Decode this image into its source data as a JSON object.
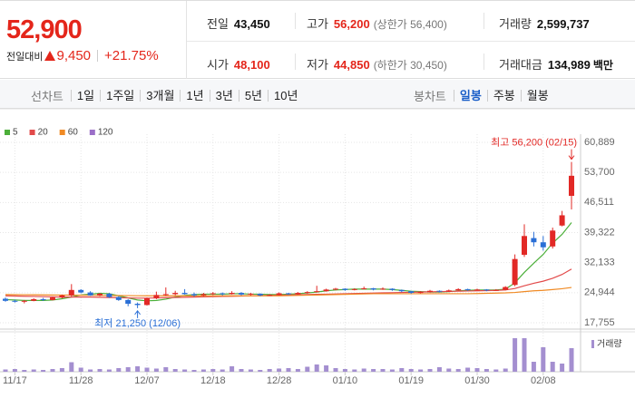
{
  "header": {
    "price": "52,900",
    "change_label": "전일대비",
    "change": "9,450",
    "change_rate": "+21.75%",
    "stats": [
      [
        {
          "label": "전일",
          "value": "43,450"
        },
        {
          "label": "고가",
          "value": "56,200",
          "note": "(상한가 56,400)"
        },
        {
          "label": "거래량",
          "value": "2,599,737"
        }
      ],
      [
        {
          "label": "시가",
          "value": "48,100"
        },
        {
          "label": "저가",
          "value": "44,850",
          "note": "(하한가 30,450)"
        },
        {
          "label": "거래대금",
          "value": "134,989",
          "unit": "백만"
        }
      ]
    ]
  },
  "tabs": {
    "line_label": "선차트",
    "line_periods": [
      "1일",
      "1주일",
      "3개월",
      "1년",
      "3년",
      "5년",
      "10년"
    ],
    "candle_label": "봉차트",
    "candle_periods": [
      "일봉",
      "주봉",
      "월봉"
    ],
    "selected": "일봉"
  },
  "chart_data": {
    "type": "candlestick",
    "categories": [
      null,
      "11/17",
      null,
      null,
      null,
      null,
      null,
      null,
      "11/28",
      null,
      null,
      null,
      null,
      null,
      null,
      "12/07",
      null,
      null,
      null,
      null,
      null,
      null,
      "12/18",
      null,
      null,
      null,
      null,
      null,
      null,
      "12/28",
      null,
      null,
      null,
      null,
      null,
      null,
      "01/10",
      null,
      null,
      null,
      null,
      null,
      null,
      "01/19",
      null,
      null,
      null,
      null,
      null,
      null,
      "01/30",
      null,
      null,
      null,
      null,
      null,
      null,
      "02/08",
      null,
      null,
      null
    ],
    "open": [
      23500,
      23000,
      22800,
      23000,
      23400,
      23200,
      23800,
      24300,
      25600,
      25000,
      24300,
      24700,
      23900,
      23200,
      22300,
      22000,
      23600,
      24400,
      24600,
      24900,
      24600,
      24300,
      24600,
      24800,
      24600,
      24900,
      24500,
      24700,
      24300,
      24400,
      24800,
      24600,
      24900,
      25100,
      25300,
      25700,
      25900,
      25600,
      25800,
      26000,
      25700,
      25900,
      25600,
      25300,
      24900,
      25100,
      25400,
      25200,
      25500,
      25800,
      25600,
      25700,
      25500,
      25600,
      26800,
      34000,
      38000,
      37000,
      36000,
      41000,
      48100
    ],
    "high": [
      23800,
      23300,
      23200,
      23600,
      23700,
      24000,
      24500,
      27000,
      25800,
      25300,
      24900,
      24900,
      24100,
      23400,
      22600,
      23800,
      25200,
      26200,
      25400,
      25800,
      25000,
      24900,
      25100,
      25000,
      25300,
      25100,
      24900,
      24800,
      24600,
      25000,
      24900,
      25100,
      25300,
      26600,
      25900,
      26100,
      26000,
      26000,
      26400,
      26100,
      26200,
      26000,
      25700,
      25400,
      25300,
      25600,
      25500,
      25700,
      26000,
      25900,
      25900,
      25800,
      25800,
      26500,
      34100,
      41300,
      39500,
      38500,
      40500,
      44500,
      56200
    ],
    "low": [
      22800,
      22600,
      22400,
      22900,
      23000,
      23100,
      23600,
      24000,
      24800,
      24200,
      24100,
      23700,
      23000,
      21700,
      21250,
      21900,
      23400,
      24200,
      24300,
      24500,
      24000,
      24100,
      24400,
      24300,
      24500,
      24300,
      24300,
      24100,
      24200,
      24300,
      24400,
      24500,
      24700,
      25000,
      25200,
      25500,
      25400,
      25500,
      25700,
      25500,
      25600,
      25400,
      25100,
      24700,
      24800,
      25000,
      25000,
      25100,
      25400,
      25400,
      25500,
      25300,
      25400,
      25500,
      26500,
      33500,
      36000,
      35000,
      35500,
      40800,
      44850
    ],
    "close": [
      23000,
      22800,
      23000,
      23400,
      23200,
      23800,
      24300,
      25600,
      25000,
      24300,
      24700,
      23900,
      23200,
      22300,
      22000,
      23600,
      24400,
      24600,
      24900,
      24600,
      24300,
      24600,
      24800,
      24600,
      24900,
      24500,
      24700,
      24300,
      24400,
      24800,
      24600,
      24900,
      25100,
      25300,
      25700,
      25900,
      25600,
      25800,
      26000,
      25700,
      25900,
      25600,
      25300,
      24900,
      25100,
      25400,
      25200,
      25500,
      25800,
      25600,
      25700,
      25500,
      25600,
      26300,
      33000,
      38500,
      37000,
      35800,
      39800,
      43450,
      52900
    ],
    "up_color": "#e22926",
    "down_color": "#2a6fd6",
    "series": [
      {
        "name": "5",
        "color": "#4caf3a",
        "values": [
          23300,
          23200,
          23100,
          23100,
          23100,
          23200,
          23500,
          23900,
          24400,
          24600,
          24800,
          24700,
          24200,
          23700,
          23200,
          23000,
          23100,
          23400,
          23900,
          24300,
          24500,
          24600,
          24600,
          24600,
          24700,
          24700,
          24600,
          24600,
          24500,
          24500,
          24600,
          24700,
          24900,
          25100,
          25400,
          25600,
          25700,
          25800,
          25800,
          25800,
          25800,
          25700,
          25500,
          25300,
          25200,
          25100,
          25100,
          25200,
          25400,
          25500,
          25600,
          25600,
          25600,
          25800,
          27300,
          29800,
          32000,
          34100,
          36800,
          38900,
          41700
        ]
      },
      {
        "name": "20",
        "color": "#e24a4a",
        "values": [
          24200,
          24150,
          24100,
          24050,
          24000,
          23950,
          23900,
          23900,
          23900,
          23900,
          23850,
          23800,
          23750,
          23700,
          23650,
          23650,
          23700,
          23750,
          23800,
          23850,
          23900,
          23950,
          24000,
          24050,
          24100,
          24150,
          24200,
          24250,
          24300,
          24350,
          24400,
          24450,
          24500,
          24550,
          24600,
          24650,
          24700,
          24750,
          24800,
          24850,
          24900,
          24950,
          25000,
          25050,
          25100,
          25150,
          25200,
          25250,
          25300,
          25350,
          25400,
          25450,
          25500,
          25600,
          25950,
          26600,
          27200,
          27700,
          28400,
          29300,
          30600
        ]
      },
      {
        "name": "60",
        "color": "#f08a24",
        "values": [
          24500,
          24480,
          24460,
          24440,
          24420,
          24400,
          24380,
          24360,
          24340,
          24320,
          24300,
          24280,
          24260,
          24240,
          24220,
          24200,
          24200,
          24200,
          24200,
          24200,
          24200,
          24200,
          24200,
          24200,
          24200,
          24200,
          24200,
          24200,
          24200,
          24200,
          24250,
          24300,
          24350,
          24400,
          24450,
          24500,
          24550,
          24600,
          24650,
          24700,
          24700,
          24700,
          24700,
          24700,
          24700,
          24700,
          24700,
          24700,
          24700,
          24700,
          24750,
          24800,
          24850,
          24900,
          25000,
          25200,
          25400,
          25500,
          25700,
          25900,
          26200
        ]
      },
      {
        "name": "120",
        "color": "#9b6fc8",
        "values": [
          null,
          null,
          null,
          null,
          null,
          null,
          null,
          null,
          null,
          null,
          null,
          null,
          null,
          null,
          null,
          null,
          null,
          null,
          null,
          null,
          null,
          null,
          null,
          null,
          null,
          null,
          null,
          null,
          null,
          null,
          null,
          null,
          null,
          null,
          null,
          null,
          null,
          null,
          null,
          null,
          null,
          null,
          null,
          null,
          null,
          null,
          null,
          null,
          null,
          null,
          null,
          null,
          null,
          null,
          null,
          null,
          null,
          null,
          null,
          null,
          null
        ]
      }
    ],
    "ylim": [
      17755,
      60889
    ],
    "yticks": [
      {
        "value": 17755,
        "label": "17,755"
      },
      {
        "value": 24944,
        "label": "24,944"
      },
      {
        "value": 32133,
        "label": "32,133"
      },
      {
        "value": 39322,
        "label": "39,322"
      },
      {
        "value": 46511,
        "label": "46,511"
      },
      {
        "value": 53700,
        "label": "53,700"
      },
      {
        "value": 60889,
        "label": "60,889"
      }
    ],
    "grid": true,
    "volume": {
      "name": "거래량",
      "color": "#a48fd0",
      "ylim": [
        0,
        4000000
      ],
      "values": [
        250000,
        300000,
        200000,
        250000,
        200000,
        300000,
        400000,
        1050000,
        450000,
        250000,
        300000,
        250000,
        400000,
        500000,
        600000,
        450000,
        350000,
        500000,
        300000,
        250000,
        200000,
        250000,
        300000,
        250000,
        600000,
        300000,
        250000,
        200000,
        300000,
        350000,
        400000,
        300000,
        550000,
        800000,
        700000,
        400000,
        300000,
        250000,
        350000,
        300000,
        300000,
        250000,
        400000,
        300000,
        250000,
        300000,
        500000,
        350000,
        300000,
        450000,
        400000,
        300000,
        250000,
        350000,
        3700000,
        3700000,
        1100000,
        2700000,
        1100000,
        900000,
        2599737
      ]
    },
    "annotations": {
      "high": "최고 56,200 (02/15)",
      "low": "최저 21,250 (12/06)"
    }
  }
}
